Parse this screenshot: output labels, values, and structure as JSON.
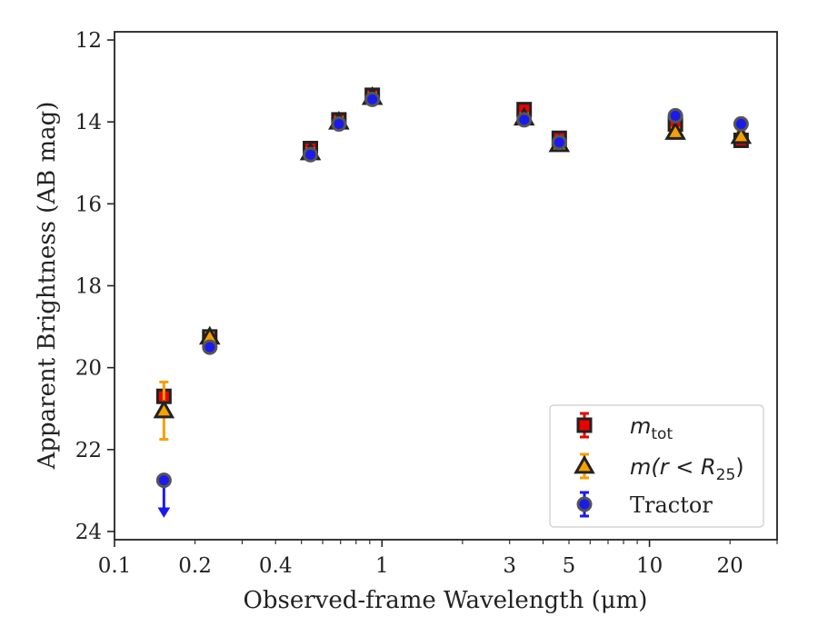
{
  "chart_data": {
    "type": "scatter",
    "xlabel": "Observed-frame Wavelength (μm)",
    "ylabel": "Apparent Brightness (AB mag)",
    "xscale": "log",
    "xlim": [
      0.1,
      30
    ],
    "ylim": [
      24.2,
      11.8
    ],
    "y_inverted": true,
    "grid": false,
    "legend_position": "lower-right",
    "x_tick_labels": [
      {
        "value": 0.1,
        "label": "0.1"
      },
      {
        "value": 0.2,
        "label": "0.2"
      },
      {
        "value": 0.4,
        "label": "0.4"
      },
      {
        "value": 1,
        "label": "1"
      },
      {
        "value": 3,
        "label": "3"
      },
      {
        "value": 5,
        "label": "5"
      },
      {
        "value": 10,
        "label": "10"
      },
      {
        "value": 20,
        "label": "20"
      }
    ],
    "y_tick_labels": [
      {
        "value": 12,
        "label": "12"
      },
      {
        "value": 14,
        "label": "14"
      },
      {
        "value": 16,
        "label": "16"
      },
      {
        "value": 18,
        "label": "18"
      },
      {
        "value": 20,
        "label": "20"
      },
      {
        "value": 22,
        "label": "22"
      },
      {
        "value": 24,
        "label": "24"
      }
    ],
    "series": [
      {
        "name": "m_tot",
        "legend_main": "m",
        "legend_sub": "tot",
        "marker": "square",
        "color": "#ee0000",
        "edge": "#222222",
        "errcolor": "#ee0000",
        "points": [
          {
            "x": 0.153,
            "y": 20.7,
            "err": 0.15
          },
          {
            "x": 0.227,
            "y": 19.25,
            "err": 0.1
          },
          {
            "x": 0.54,
            "y": 14.65,
            "err": 0.1
          },
          {
            "x": 0.69,
            "y": 13.95,
            "err": 0.1
          },
          {
            "x": 0.92,
            "y": 13.35,
            "err": 0.1
          },
          {
            "x": 3.4,
            "y": 13.7,
            "err": 0.1
          },
          {
            "x": 4.6,
            "y": 14.4,
            "err": 0.1
          },
          {
            "x": 12.5,
            "y": 14.05,
            "err": 0.1
          },
          {
            "x": 22.0,
            "y": 14.45,
            "err": 0.15
          }
        ]
      },
      {
        "name": "m(r < R25)",
        "legend_main": "m(r < R",
        "legend_sub": "25",
        "legend_tail": ")",
        "marker": "triangle",
        "color": "#f5a000",
        "edge": "#222222",
        "errcolor": "#f5a000",
        "points": [
          {
            "x": 0.153,
            "y": 21.05,
            "err": 0.7
          },
          {
            "x": 0.227,
            "y": 19.25,
            "err": 0.1
          },
          {
            "x": 0.54,
            "y": 14.75,
            "err": 0.1
          },
          {
            "x": 0.69,
            "y": 14.0,
            "err": 0.1
          },
          {
            "x": 0.92,
            "y": 13.4,
            "err": 0.1
          },
          {
            "x": 3.4,
            "y": 13.9,
            "err": 0.1
          },
          {
            "x": 4.6,
            "y": 14.55,
            "err": 0.1
          },
          {
            "x": 12.5,
            "y": 14.25,
            "err": 0.1
          },
          {
            "x": 22.0,
            "y": 14.35,
            "err": 0.1
          }
        ]
      },
      {
        "name": "Tractor",
        "legend_main": "Tractor",
        "marker": "circle",
        "color": "#1a1aee",
        "edge": "#555555",
        "errcolor": "#1a1aee",
        "points": [
          {
            "x": 0.153,
            "y": 22.75,
            "err": 0,
            "upper_limit": true
          },
          {
            "x": 0.227,
            "y": 19.5,
            "err": 0.1
          },
          {
            "x": 0.54,
            "y": 14.8,
            "err": 0.1
          },
          {
            "x": 0.69,
            "y": 14.05,
            "err": 0.1
          },
          {
            "x": 0.92,
            "y": 13.45,
            "err": 0.1
          },
          {
            "x": 3.4,
            "y": 13.95,
            "err": 0.1
          },
          {
            "x": 4.6,
            "y": 14.5,
            "err": 0.1
          },
          {
            "x": 12.5,
            "y": 13.85,
            "err": 0.1
          },
          {
            "x": 22.0,
            "y": 14.05,
            "err": 0.1
          }
        ]
      }
    ]
  }
}
